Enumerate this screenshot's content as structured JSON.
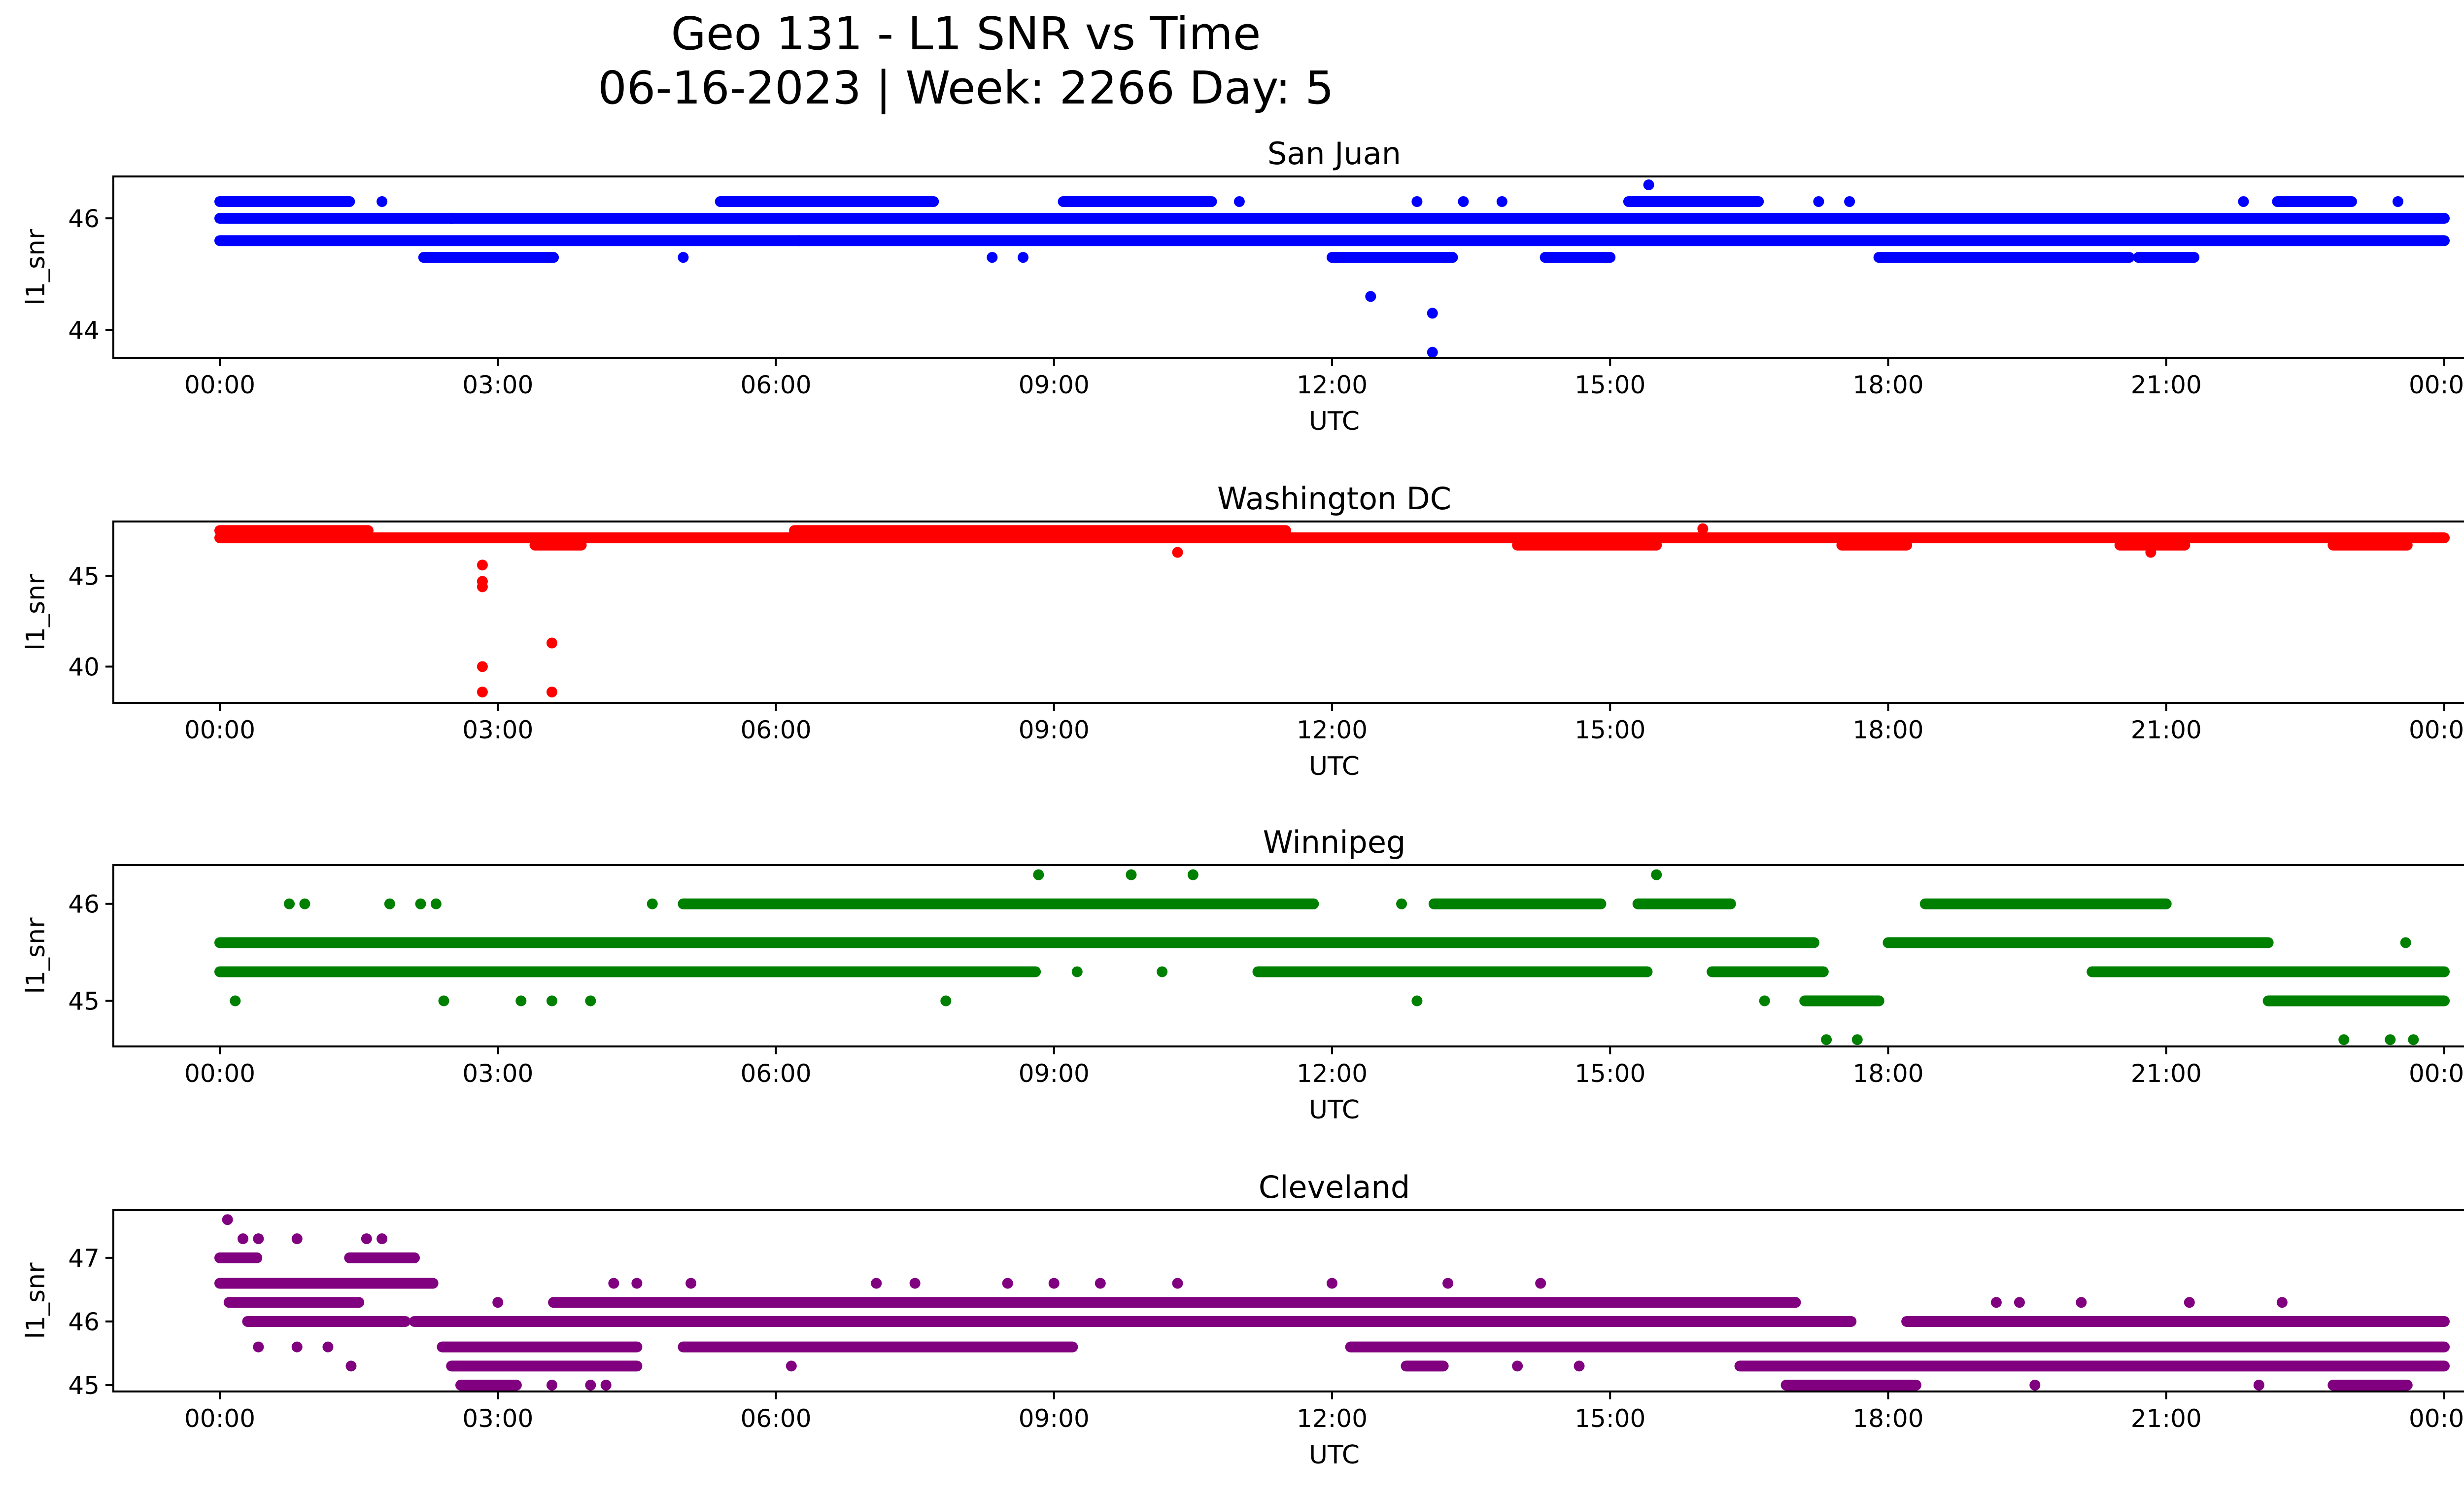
{
  "figure": {
    "title_line1": "Geo 131 - L1 SNR vs Time",
    "title_line2": "06-16-2023 | Week: 2266 Day: 5"
  },
  "chart_data": [
    {
      "type": "scatter",
      "title": "San Juan",
      "xlabel": "UTC",
      "ylabel": "l1_snr",
      "color": "#0000ff",
      "xlim": [
        "00:00",
        "24:00"
      ],
      "ylim": [
        43.5,
        46.75
      ],
      "yticks": [
        44,
        46
      ],
      "xticks": [
        "00:00",
        "03:00",
        "06:00",
        "09:00",
        "12:00",
        "15:00",
        "18:00",
        "21:00",
        "00:00"
      ],
      "bands": [
        {
          "y": 46.0,
          "segments": [
            [
              0.0,
              24.0
            ]
          ]
        },
        {
          "y": 45.6,
          "segments": [
            [
              0.0,
              24.0
            ]
          ]
        },
        {
          "y": 46.3,
          "segments": [
            [
              0.0,
              1.4
            ],
            [
              5.4,
              7.7
            ],
            [
              9.1,
              10.7
            ],
            [
              15.2,
              16.6
            ],
            [
              22.2,
              23.0
            ]
          ]
        },
        {
          "y": 45.3,
          "segments": [
            [
              2.2,
              3.6
            ],
            [
              12.0,
              13.3
            ],
            [
              14.3,
              15.0
            ],
            [
              17.9,
              20.6
            ],
            [
              20.7,
              21.3
            ]
          ]
        }
      ],
      "points": [
        {
          "x": "00:30",
          "y": 46.3
        },
        {
          "x": "01:45",
          "y": 46.3
        },
        {
          "x": "02:30",
          "y": 46.0
        },
        {
          "x": "05:00",
          "y": 45.3
        },
        {
          "x": "06:15",
          "y": 45.6
        },
        {
          "x": "08:20",
          "y": 45.3
        },
        {
          "x": "08:40",
          "y": 45.3
        },
        {
          "x": "11:00",
          "y": 46.3
        },
        {
          "x": "12:25",
          "y": 44.6
        },
        {
          "x": "12:40",
          "y": 45.3
        },
        {
          "x": "12:55",
          "y": 46.3
        },
        {
          "x": "13:05",
          "y": 44.3
        },
        {
          "x": "13:05",
          "y": 43.6
        },
        {
          "x": "13:25",
          "y": 46.3
        },
        {
          "x": "13:50",
          "y": 46.3
        },
        {
          "x": "15:25",
          "y": 46.6
        },
        {
          "x": "17:15",
          "y": 46.3
        },
        {
          "x": "17:35",
          "y": 46.3
        },
        {
          "x": "21:50",
          "y": 46.3
        },
        {
          "x": "23:30",
          "y": 46.3
        }
      ]
    },
    {
      "type": "scatter",
      "title": "Washington DC",
      "xlabel": "UTC",
      "ylabel": "l1_snr",
      "color": "#ff0000",
      "xlim": [
        "00:00",
        "24:00"
      ],
      "ylim": [
        38.0,
        48.0
      ],
      "yticks": [
        40,
        45
      ],
      "xticks": [
        "00:00",
        "03:00",
        "06:00",
        "09:00",
        "12:00",
        "15:00",
        "18:00",
        "21:00",
        "00:00"
      ],
      "bands": [
        {
          "y": 47.1,
          "segments": [
            [
              0.0,
              24.0
            ]
          ]
        },
        {
          "y": 47.5,
          "segments": [
            [
              0.0,
              1.6
            ],
            [
              6.2,
              11.5
            ]
          ]
        },
        {
          "y": 46.7,
          "segments": [
            [
              3.4,
              3.9
            ],
            [
              14.0,
              15.5
            ],
            [
              17.5,
              18.2
            ],
            [
              20.5,
              21.2
            ],
            [
              22.8,
              23.6
            ]
          ]
        }
      ],
      "points": [
        {
          "x": "02:50",
          "y": 45.6
        },
        {
          "x": "02:50",
          "y": 44.7
        },
        {
          "x": "02:50",
          "y": 44.4
        },
        {
          "x": "02:50",
          "y": 40.0
        },
        {
          "x": "02:50",
          "y": 38.6
        },
        {
          "x": "03:35",
          "y": 41.3
        },
        {
          "x": "03:35",
          "y": 38.6
        },
        {
          "x": "10:20",
          "y": 46.3
        },
        {
          "x": "20:50",
          "y": 46.3
        },
        {
          "x": "16:00",
          "y": 47.6
        }
      ]
    },
    {
      "type": "scatter",
      "title": "Winnipeg",
      "xlabel": "UTC",
      "ylabel": "l1_snr",
      "color": "#008000",
      "xlim": [
        "00:00",
        "24:00"
      ],
      "ylim": [
        44.53,
        46.4
      ],
      "yticks": [
        45,
        46
      ],
      "xticks": [
        "00:00",
        "03:00",
        "06:00",
        "09:00",
        "12:00",
        "15:00",
        "18:00",
        "21:00",
        "00:00"
      ],
      "bands": [
        {
          "y": 45.6,
          "segments": [
            [
              0.0,
              17.2
            ],
            [
              18.0,
              22.1
            ]
          ]
        },
        {
          "y": 45.3,
          "segments": [
            [
              0.0,
              8.8
            ],
            [
              11.2,
              15.4
            ],
            [
              16.1,
              17.3
            ],
            [
              20.2,
              24.0
            ]
          ]
        },
        {
          "y": 46.0,
          "segments": [
            [
              5.0,
              11.8
            ],
            [
              13.1,
              14.9
            ],
            [
              15.3,
              16.3
            ],
            [
              18.4,
              21.0
            ]
          ]
        },
        {
          "y": 45.0,
          "segments": [
            [
              17.1,
              17.9
            ],
            [
              22.1,
              24.0
            ]
          ]
        }
      ],
      "points": [
        {
          "x": "00:10",
          "y": 45.0
        },
        {
          "x": "00:45",
          "y": 46.0
        },
        {
          "x": "00:55",
          "y": 46.0
        },
        {
          "x": "01:50",
          "y": 46.0
        },
        {
          "x": "02:10",
          "y": 46.0
        },
        {
          "x": "02:20",
          "y": 46.0
        },
        {
          "x": "02:25",
          "y": 45.0
        },
        {
          "x": "03:15",
          "y": 45.0
        },
        {
          "x": "03:35",
          "y": 45.0
        },
        {
          "x": "04:00",
          "y": 45.0
        },
        {
          "x": "04:40",
          "y": 46.0
        },
        {
          "x": "07:50",
          "y": 45.0
        },
        {
          "x": "08:50",
          "y": 46.3
        },
        {
          "x": "09:50",
          "y": 46.3
        },
        {
          "x": "10:30",
          "y": 46.3
        },
        {
          "x": "12:55",
          "y": 45.0
        },
        {
          "x": "15:30",
          "y": 46.3
        },
        {
          "x": "16:40",
          "y": 45.0
        },
        {
          "x": "17:20",
          "y": 44.6
        },
        {
          "x": "17:40",
          "y": 44.6
        },
        {
          "x": "22:55",
          "y": 44.6
        },
        {
          "x": "23:25",
          "y": 44.6
        },
        {
          "x": "23:40",
          "y": 44.6
        },
        {
          "x": "23:35",
          "y": 45.6
        },
        {
          "x": "09:15",
          "y": 45.3
        },
        {
          "x": "10:10",
          "y": 45.3
        },
        {
          "x": "12:45",
          "y": 46.0
        }
      ]
    },
    {
      "type": "scatter",
      "title": "Cleveland",
      "xlabel": "UTC",
      "ylabel": "l1_snr",
      "color": "#800080",
      "xlim": [
        "00:00",
        "24:00"
      ],
      "ylim": [
        44.9,
        47.75
      ],
      "yticks": [
        45,
        46,
        47
      ],
      "xticks": [
        "00:00",
        "03:00",
        "06:00",
        "09:00",
        "12:00",
        "15:00",
        "18:00",
        "21:00",
        "00:00"
      ],
      "bands": [
        {
          "y": 46.6,
          "segments": [
            [
              0.0,
              2.3
            ]
          ]
        },
        {
          "y": 46.3,
          "segments": [
            [
              0.1,
              1.5
            ],
            [
              3.6,
              17.0
            ]
          ]
        },
        {
          "y": 46.0,
          "segments": [
            [
              0.3,
              2.0
            ],
            [
              2.1,
              17.6
            ],
            [
              18.2,
              24.0
            ]
          ]
        },
        {
          "y": 45.6,
          "segments": [
            [
              2.4,
              4.5
            ],
            [
              5.0,
              9.2
            ],
            [
              12.2,
              24.0
            ]
          ]
        },
        {
          "y": 45.3,
          "segments": [
            [
              2.5,
              4.5
            ],
            [
              12.8,
              13.2
            ],
            [
              16.4,
              24.0
            ]
          ]
        },
        {
          "y": 45.0,
          "segments": [
            [
              2.6,
              3.2
            ],
            [
              16.9,
              18.3
            ],
            [
              22.8,
              23.6
            ]
          ]
        },
        {
          "y": 47.0,
          "segments": [
            [
              0.0,
              0.4
            ],
            [
              1.4,
              2.1
            ]
          ]
        }
      ],
      "points": [
        {
          "x": "00:05",
          "y": 47.6
        },
        {
          "x": "00:15",
          "y": 47.3
        },
        {
          "x": "00:25",
          "y": 47.3
        },
        {
          "x": "00:50",
          "y": 47.3
        },
        {
          "x": "01:35",
          "y": 47.3
        },
        {
          "x": "01:45",
          "y": 47.3
        },
        {
          "x": "00:25",
          "y": 45.6
        },
        {
          "x": "00:50",
          "y": 45.6
        },
        {
          "x": "01:10",
          "y": 45.6
        },
        {
          "x": "01:25",
          "y": 45.3
        },
        {
          "x": "04:15",
          "y": 46.6
        },
        {
          "x": "04:30",
          "y": 46.6
        },
        {
          "x": "05:05",
          "y": 46.6
        },
        {
          "x": "07:05",
          "y": 46.6
        },
        {
          "x": "07:30",
          "y": 46.6
        },
        {
          "x": "08:30",
          "y": 46.6
        },
        {
          "x": "09:00",
          "y": 46.6
        },
        {
          "x": "09:30",
          "y": 46.6
        },
        {
          "x": "10:20",
          "y": 46.6
        },
        {
          "x": "12:00",
          "y": 46.6
        },
        {
          "x": "13:15",
          "y": 46.6
        },
        {
          "x": "14:15",
          "y": 46.6
        },
        {
          "x": "03:00",
          "y": 46.3
        },
        {
          "x": "06:10",
          "y": 45.3
        },
        {
          "x": "04:00",
          "y": 45.0
        },
        {
          "x": "04:10",
          "y": 45.0
        },
        {
          "x": "03:35",
          "y": 45.0
        },
        {
          "x": "14:00",
          "y": 45.3
        },
        {
          "x": "14:40",
          "y": 45.3
        },
        {
          "x": "19:10",
          "y": 46.3
        },
        {
          "x": "19:25",
          "y": 46.3
        },
        {
          "x": "20:05",
          "y": 46.3
        },
        {
          "x": "21:15",
          "y": 46.3
        },
        {
          "x": "22:15",
          "y": 46.3
        },
        {
          "x": "19:35",
          "y": 45.0
        },
        {
          "x": "22:00",
          "y": 45.0
        }
      ]
    }
  ]
}
